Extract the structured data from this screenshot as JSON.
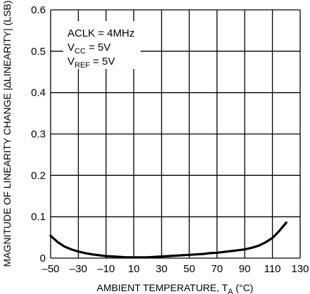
{
  "chart_data": {
    "type": "line",
    "title": "",
    "xlabel": "AMBIENT TEMPERATURE, T",
    "xlabel_sub": "A",
    "xlabel_unit": " (°C)",
    "ylabel": "MAGNITUDE OF LINEARITY CHANGE |∆LINEARITY| (LSB)",
    "xlim": [
      -50,
      130
    ],
    "ylim": [
      0,
      0.6
    ],
    "x_ticks": [
      -50,
      -30,
      -10,
      10,
      30,
      50,
      70,
      90,
      110,
      130
    ],
    "y_ticks": [
      0,
      0.1,
      0.2,
      0.3,
      0.4,
      0.5,
      0.6
    ],
    "x_tick_labels": [
      "–50",
      "–30",
      "–10",
      "10",
      "30",
      "50",
      "70",
      "90",
      "110",
      "130"
    ],
    "y_tick_labels": [
      "0",
      "0.1",
      "0.2",
      "0.3",
      "0.4",
      "0.5",
      "0.6"
    ],
    "grid": true,
    "annotations": [
      {
        "main": "ACLK = 4MHz",
        "sub": "",
        "tail": ""
      },
      {
        "main": "V",
        "sub": "CC",
        "tail": " = 5V"
      },
      {
        "main": "V",
        "sub": "REF",
        "tail": " = 5V"
      }
    ],
    "series": [
      {
        "x": [
          -50,
          -45,
          -40,
          -35,
          -30,
          -25,
          -20,
          -15,
          -10,
          -5,
          0,
          5,
          10,
          15,
          20,
          25,
          30,
          35,
          40,
          45,
          50,
          55,
          60,
          65,
          70,
          75,
          80,
          85,
          90,
          95,
          100,
          105,
          110,
          115,
          120
        ],
        "y": [
          0.054,
          0.039,
          0.028,
          0.021,
          0.016,
          0.012,
          0.009,
          0.007,
          0.005,
          0.004,
          0.003,
          0.002,
          0.002,
          0.002,
          0.002,
          0.003,
          0.004,
          0.005,
          0.006,
          0.007,
          0.008,
          0.009,
          0.01,
          0.012,
          0.013,
          0.015,
          0.017,
          0.019,
          0.021,
          0.025,
          0.03,
          0.038,
          0.049,
          0.066,
          0.086
        ]
      }
    ]
  }
}
